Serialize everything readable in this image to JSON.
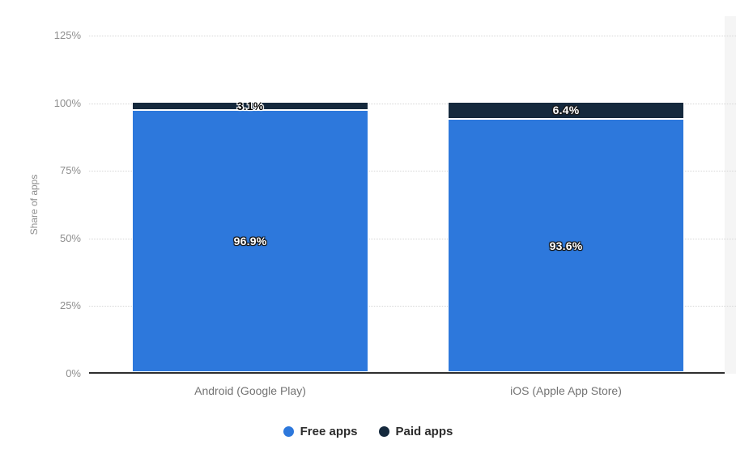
{
  "chart_data": {
    "type": "bar",
    "stacked": true,
    "title": "",
    "categories": [
      "Android (Google Play)",
      "iOS (Apple App Store)"
    ],
    "series": [
      {
        "name": "Free apps",
        "color": "#2d78dc",
        "values": [
          96.9,
          93.6
        ],
        "labels": [
          "96.9%",
          "93.6%"
        ]
      },
      {
        "name": "Paid apps",
        "color": "#15293d",
        "values": [
          3.1,
          6.4
        ],
        "labels": [
          "3.1%",
          "6.4%"
        ]
      }
    ],
    "xlabel": "",
    "ylabel": "Share of apps",
    "ylim": [
      0,
      125
    ],
    "yticks": [
      0,
      25,
      50,
      75,
      100,
      125
    ],
    "ytick_labels": [
      "0%",
      "25%",
      "50%",
      "75%",
      "100%",
      "125%"
    ],
    "grid": "horizontal-dotted",
    "legend_position": "bottom",
    "legend": [
      {
        "label": "Free apps",
        "color": "#2d78dc"
      },
      {
        "label": "Paid apps",
        "color": "#15293d"
      }
    ]
  },
  "colors": {
    "axis_line": "#2e2e2e",
    "gridline": "#d6d6d6",
    "tick_label": "#8e8e8e",
    "category_label": "#737373",
    "legend_text": "#2d2d2d",
    "plot_strip": "#f5f5f5"
  }
}
